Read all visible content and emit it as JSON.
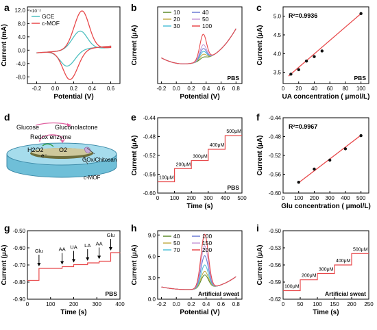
{
  "chart_data": [
    {
      "panel": "a",
      "type": "line",
      "xlabel": "Potential (V)",
      "ylabel": "Current (mA)",
      "scale_note": "×10⁻²",
      "xlim": [
        -0.3,
        0.7
      ],
      "ylim": [
        -10,
        13
      ],
      "xticks": [
        -0.2,
        0,
        0.2,
        0.4,
        0.6
      ],
      "xticklabels": [
        "-0.2",
        "0.0",
        "0.2",
        "0.4",
        "0.6"
      ],
      "yticks": [
        -8,
        -4,
        0,
        4,
        8,
        12
      ],
      "yticklabels": [
        "-8.0",
        "-4.0",
        "0.0",
        "4.0",
        "8.0",
        "12.0"
      ],
      "legend": [
        "GCE",
        "c-MOF"
      ],
      "legend_position": "top-left",
      "series": [
        {
          "name": "GCE",
          "color": "#4fc0c0",
          "kind": "cv",
          "ipa": 5.6,
          "epa": 0.27,
          "ipc": -4.8,
          "epc": 0.13
        },
        {
          "name": "c-MOF",
          "color": "#e8484a",
          "kind": "cv",
          "ipa": 11.6,
          "epa": 0.29,
          "ipc": -8.9,
          "epc": 0.16
        }
      ]
    },
    {
      "panel": "b",
      "type": "line",
      "xlabel": "Potential (V)",
      "ylabel": "Current (μA)",
      "annotation": "PBS",
      "xlim": [
        -0.25,
        0.88
      ],
      "ylim": [
        -1,
        7
      ],
      "xticks": [
        -0.2,
        0,
        0.2,
        0.4,
        0.6,
        0.8
      ],
      "xticklabels": [
        "-0.2",
        "0.0",
        "0.2",
        "0.4",
        "0.6",
        "0.8"
      ],
      "yticks": [],
      "yticklabels": [],
      "legend": [
        "10",
        "20",
        "30",
        "40",
        "50",
        "100"
      ],
      "legend_position": "top-left",
      "series": [
        {
          "name": "10",
          "color": "#5c8a2b",
          "kind": "dpv",
          "peak": 0.3
        },
        {
          "name": "20",
          "color": "#c2ae4a",
          "kind": "dpv",
          "peak": 0.6
        },
        {
          "name": "30",
          "color": "#4fc0d8",
          "kind": "dpv",
          "peak": 0.9
        },
        {
          "name": "40",
          "color": "#6a7bd4",
          "kind": "dpv",
          "peak": 1.2
        },
        {
          "name": "50",
          "color": "#c79ad8",
          "kind": "dpv",
          "peak": 1.6
        },
        {
          "name": "100",
          "color": "#e8484a",
          "kind": "dpv",
          "peak": 2.7
        }
      ]
    },
    {
      "panel": "c",
      "type": "scatter",
      "xlabel": "UA concentration ( μmol/L)",
      "ylabel": "Current (μA)",
      "annotation": "PBS",
      "r2": "R²=0.9936",
      "xlim": [
        0,
        110
      ],
      "ylim": [
        3.2,
        5.25
      ],
      "xticks": [
        0,
        20,
        40,
        60,
        80,
        100
      ],
      "xticklabels": [
        "0",
        "20",
        "40",
        "60",
        "80",
        "100"
      ],
      "yticks": [
        3.5,
        4.0,
        4.5,
        5.0
      ],
      "yticklabels": [
        "3.5",
        "4.0",
        "4.5",
        "5.0"
      ],
      "x": [
        10,
        20,
        30,
        40,
        50,
        100
      ],
      "y": [
        3.45,
        3.57,
        3.8,
        3.92,
        4.07,
        5.07
      ],
      "fit": [
        [
          7,
          3.4
        ],
        [
          100,
          5.07
        ]
      ]
    },
    {
      "panel": "e",
      "type": "line",
      "xlabel": "Time (s)",
      "ylabel": "Current (μA)",
      "annotation": "PBS",
      "xlim": [
        0,
        500
      ],
      "ylim": [
        -0.6,
        -0.44
      ],
      "xticks": [
        0,
        100,
        200,
        300,
        400,
        500
      ],
      "xticklabels": [
        "0",
        "100",
        "200",
        "300",
        "400",
        "500"
      ],
      "yticks": [
        -0.6,
        -0.56,
        -0.52,
        -0.48,
        -0.44
      ],
      "yticklabels": [
        "-0.60",
        "-0.56",
        "-0.52",
        "-0.48",
        "-0.44"
      ],
      "steps": {
        "times": [
          0,
          100,
          200,
          300,
          400,
          500
        ],
        "levels": [
          -0.576,
          -0.548,
          -0.531,
          -0.507,
          -0.478
        ]
      },
      "step_labels": [
        "100μM",
        "200μM",
        "300μM",
        "400μM",
        "500μM"
      ],
      "series": [
        {
          "name": "",
          "color": "#e8484a"
        }
      ]
    },
    {
      "panel": "f",
      "type": "scatter",
      "xlabel": "Glu concentration ( μmol/L)",
      "ylabel": "Current (μA)",
      "r2": "R²=0.9967",
      "xlim": [
        0,
        550
      ],
      "ylim": [
        -0.6,
        -0.44
      ],
      "xticks": [
        0,
        100,
        200,
        300,
        400,
        500
      ],
      "xticklabels": [
        "0",
        "100",
        "200",
        "300",
        "400",
        "500"
      ],
      "yticks": [
        -0.6,
        -0.56,
        -0.52,
        -0.48,
        -0.44
      ],
      "yticklabels": [
        "-0.60",
        "-0.56",
        "-0.52",
        "-0.48",
        "-0.44"
      ],
      "x": [
        100,
        200,
        300,
        400,
        500
      ],
      "y": [
        -0.577,
        -0.549,
        -0.53,
        -0.506,
        -0.478
      ],
      "fit": [
        [
          100,
          -0.578
        ],
        [
          500,
          -0.477
        ]
      ]
    },
    {
      "panel": "g",
      "type": "line",
      "xlabel": "Time (s)",
      "ylabel": "Current (μA)",
      "annotation": "PBS",
      "xlim": [
        0,
        400
      ],
      "ylim": [
        -0.9,
        -0.5
      ],
      "xticks": [
        0,
        100,
        200,
        300,
        400
      ],
      "xticklabels": [
        "0",
        "100",
        "200",
        "300",
        "400"
      ],
      "yticks": [
        -0.9,
        -0.8,
        -0.7,
        -0.6,
        -0.5
      ],
      "yticklabels": [
        "-0.90",
        "-0.80",
        "-0.70",
        "-0.60",
        "-0.50"
      ],
      "steps": {
        "times": [
          0,
          50,
          150,
          200,
          260,
          310,
          360,
          400
        ],
        "levels": [
          -0.79,
          -0.72,
          -0.71,
          -0.698,
          -0.688,
          -0.678,
          -0.628,
          -0.627
        ]
      },
      "arrows": [
        {
          "label": "Glu",
          "t": 50,
          "level": -0.72
        },
        {
          "label": "AA",
          "t": 150,
          "level": -0.71
        },
        {
          "label": "UA",
          "t": 200,
          "level": -0.698
        },
        {
          "label": "LA",
          "t": 260,
          "level": -0.688
        },
        {
          "label": "AA",
          "t": 310,
          "level": -0.678
        },
        {
          "label": "Glu",
          "t": 360,
          "level": -0.628
        }
      ],
      "series": [
        {
          "name": "",
          "color": "#e8484a"
        }
      ]
    },
    {
      "panel": "h",
      "type": "line",
      "xlabel": "Potential (V)",
      "ylabel": "Current (μA)",
      "annotation": "Artificial sweat",
      "xlim": [
        -0.25,
        0.88
      ],
      "ylim": [
        0,
        9.6
      ],
      "xticks": [
        -0.2,
        0,
        0.2,
        0.4,
        0.6,
        0.8
      ],
      "xticklabels": [
        "-0.2",
        "0.0",
        "0.2",
        "0.4",
        "0.6",
        "0.8"
      ],
      "yticks": [
        0,
        3,
        6,
        9
      ],
      "yticklabels": [
        "0.0",
        "3.0",
        "6.0",
        "9.0"
      ],
      "legend": [
        "40",
        "50",
        "70",
        "100",
        "150",
        "200"
      ],
      "legend_position": "top-left",
      "series": [
        {
          "name": "40",
          "color": "#5c8a2b",
          "kind": "peak",
          "peak": 1.9
        },
        {
          "name": "50",
          "color": "#c2ae4a",
          "kind": "peak",
          "peak": 2.4
        },
        {
          "name": "70",
          "color": "#4fc0d8",
          "kind": "peak",
          "peak": 3.3
        },
        {
          "name": "100",
          "color": "#6a7bd4",
          "kind": "peak",
          "peak": 4.6
        },
        {
          "name": "150",
          "color": "#c79ad8",
          "kind": "peak",
          "peak": 6.0
        },
        {
          "name": "200",
          "color": "#e8484a",
          "kind": "peak",
          "peak": 7.6
        }
      ]
    },
    {
      "panel": "i",
      "type": "line",
      "xlabel": "Time (s)",
      "ylabel": "Current (μA)",
      "annotation": "Artificial sweat",
      "xlim": [
        0,
        250
      ],
      "ylim": [
        -0.62,
        -0.5
      ],
      "xticks": [
        0,
        50,
        100,
        150,
        200,
        250
      ],
      "xticklabels": [
        "0",
        "50",
        "100",
        "150",
        "200",
        "250"
      ],
      "yticks": [
        -0.62,
        -0.59,
        -0.56,
        -0.53,
        -0.5
      ],
      "yticklabels": [
        "-0.62",
        "-0.59",
        "-0.56",
        "-0.53",
        "-0.50"
      ],
      "steps": {
        "times": [
          0,
          50,
          100,
          150,
          200,
          250
        ],
        "levels": [
          -0.605,
          -0.586,
          -0.575,
          -0.56,
          -0.54
        ]
      },
      "step_labels": [
        "100μM",
        "200μM",
        "300μM",
        "400μM",
        "500μM"
      ],
      "series": [
        {
          "name": "",
          "color": "#e8484a"
        }
      ]
    }
  ],
  "labels": {
    "panels": {
      "a": "a",
      "b": "b",
      "c": "c",
      "d": "d",
      "e": "e",
      "f": "f",
      "g": "g",
      "h": "h",
      "i": "i"
    },
    "diagram_d": {
      "glucose": "Glucose",
      "gluconolactone": "Gluconolactone",
      "redox_enzyme": "Redox enzyme",
      "h2o2": "H2O2",
      "o2": "O2",
      "electron": "e⁻",
      "gox_chitosan": "GOx/Chitosan",
      "cmof": "c-MOF"
    }
  }
}
